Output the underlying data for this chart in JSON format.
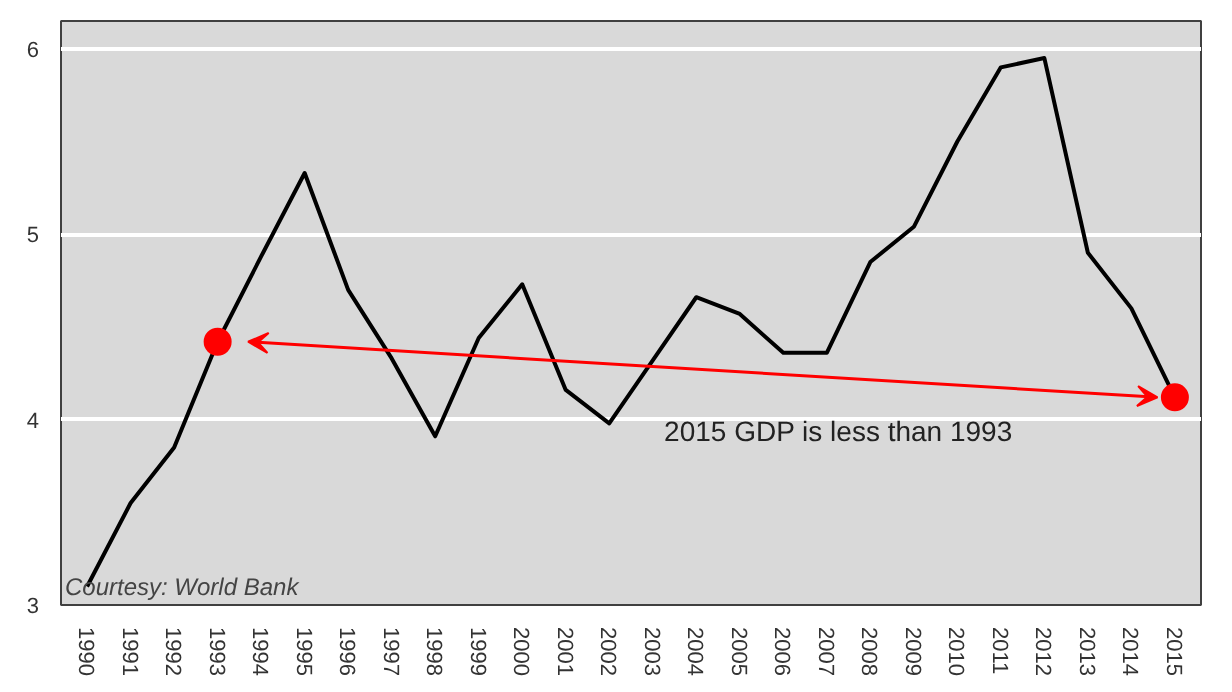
{
  "chart_data": {
    "type": "line",
    "categories": [
      "1990",
      "1991",
      "1992",
      "1993",
      "1994",
      "1995",
      "1996",
      "1997",
      "1998",
      "1999",
      "2000",
      "2001",
      "2002",
      "2003",
      "2004",
      "2005",
      "2006",
      "2007",
      "2008",
      "2009",
      "2010",
      "2011",
      "2012",
      "2013",
      "2014",
      "2015"
    ],
    "series": [
      {
        "color": "#000000",
        "values": [
          3.1,
          3.55,
          3.85,
          4.42,
          4.88,
          5.33,
          4.7,
          4.33,
          3.91,
          4.44,
          4.73,
          4.16,
          3.98,
          4.32,
          4.66,
          4.57,
          4.36,
          4.36,
          4.85,
          5.04,
          5.5,
          5.9,
          5.95,
          4.9,
          4.6,
          4.12
        ]
      },
      {
        "type": "scatter",
        "marker": "circle",
        "color": "#ff0000",
        "values": [
          null,
          null,
          null,
          4.42,
          null,
          null,
          null,
          null,
          null,
          null,
          null,
          null,
          null,
          null,
          null,
          null,
          null,
          null,
          null,
          null,
          null,
          null,
          null,
          null,
          null,
          4.12
        ]
      }
    ],
    "ylim": [
      3,
      6.15
    ],
    "yticks": [
      3,
      4,
      5,
      6
    ],
    "grid": "y",
    "marker": "none",
    "annotations": [
      "2015 GDP is less than 1993",
      "Courtesy: World Bank"
    ]
  }
}
